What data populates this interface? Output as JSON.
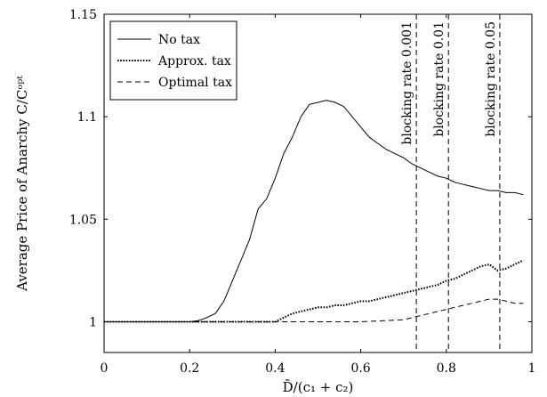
{
  "chart_data": {
    "type": "line",
    "title": "",
    "xlabel": "D̄/(c₁ + c₂)",
    "ylabel": "Average Price of Anarchy C/Cᵒᵖᵗ",
    "xlim": [
      0,
      1
    ],
    "ylim": [
      0.985,
      1.15
    ],
    "xticks": [
      0,
      0.2,
      0.4,
      0.6,
      0.8,
      1
    ],
    "xtick_labels": [
      "0",
      "0.2",
      "0.4",
      "0.6",
      "0.8",
      "1"
    ],
    "yticks": [
      1,
      1.05,
      1.1,
      1.15
    ],
    "ytick_labels": [
      "1",
      "1.05",
      "1.1",
      "1.15"
    ],
    "grid": false,
    "legend_position": "top-left",
    "series": [
      {
        "name": "No tax",
        "style": "solid",
        "x": [
          0,
          0.05,
          0.1,
          0.15,
          0.2,
          0.22,
          0.24,
          0.26,
          0.28,
          0.3,
          0.32,
          0.34,
          0.36,
          0.38,
          0.4,
          0.42,
          0.44,
          0.46,
          0.48,
          0.5,
          0.52,
          0.54,
          0.56,
          0.58,
          0.6,
          0.62,
          0.64,
          0.66,
          0.68,
          0.7,
          0.72,
          0.74,
          0.76,
          0.78,
          0.8,
          0.82,
          0.84,
          0.86,
          0.88,
          0.9,
          0.92,
          0.94,
          0.96,
          0.98
        ],
        "y": [
          1.0,
          1.0,
          1.0,
          1.0,
          1.0,
          1.0005,
          1.002,
          1.004,
          1.01,
          1.02,
          1.03,
          1.04,
          1.055,
          1.06,
          1.07,
          1.082,
          1.09,
          1.1,
          1.106,
          1.107,
          1.108,
          1.107,
          1.105,
          1.1,
          1.095,
          1.09,
          1.087,
          1.084,
          1.082,
          1.08,
          1.077,
          1.075,
          1.073,
          1.071,
          1.07,
          1.068,
          1.067,
          1.066,
          1.065,
          1.064,
          1.064,
          1.063,
          1.063,
          1.062
        ]
      },
      {
        "name": "Approx. tax",
        "style": "dotted",
        "x": [
          0,
          0.05,
          0.1,
          0.15,
          0.2,
          0.25,
          0.3,
          0.35,
          0.4,
          0.42,
          0.44,
          0.46,
          0.48,
          0.5,
          0.52,
          0.54,
          0.56,
          0.58,
          0.6,
          0.62,
          0.64,
          0.66,
          0.68,
          0.7,
          0.72,
          0.74,
          0.76,
          0.78,
          0.8,
          0.82,
          0.84,
          0.86,
          0.88,
          0.9,
          0.92,
          0.94,
          0.96,
          0.98
        ],
        "y": [
          1.0,
          1.0,
          1.0,
          1.0,
          1.0,
          1.0,
          1.0,
          1.0,
          1.0,
          1.002,
          1.004,
          1.005,
          1.006,
          1.007,
          1.007,
          1.008,
          1.008,
          1.009,
          1.01,
          1.01,
          1.011,
          1.012,
          1.013,
          1.014,
          1.015,
          1.016,
          1.017,
          1.018,
          1.02,
          1.021,
          1.023,
          1.025,
          1.027,
          1.028,
          1.025,
          1.026,
          1.028,
          1.03
        ]
      },
      {
        "name": "Optimal tax",
        "style": "dashed",
        "x": [
          0,
          0.1,
          0.2,
          0.3,
          0.4,
          0.5,
          0.6,
          0.7,
          0.72,
          0.74,
          0.76,
          0.78,
          0.8,
          0.82,
          0.84,
          0.86,
          0.88,
          0.9,
          0.92,
          0.94,
          0.96,
          0.98
        ],
        "y": [
          1.0,
          1.0,
          1.0,
          1.0,
          1.0,
          1.0,
          1.0,
          1.001,
          1.002,
          1.003,
          1.004,
          1.005,
          1.006,
          1.007,
          1.008,
          1.009,
          1.01,
          1.011,
          1.011,
          1.01,
          1.009,
          1.009
        ]
      }
    ],
    "vlines": [
      {
        "x": 0.73,
        "label": "blocking rate 0.001"
      },
      {
        "x": 0.805,
        "label": "blocking rate 0.01"
      },
      {
        "x": 0.925,
        "label": "blocking rate 0.05"
      }
    ]
  }
}
